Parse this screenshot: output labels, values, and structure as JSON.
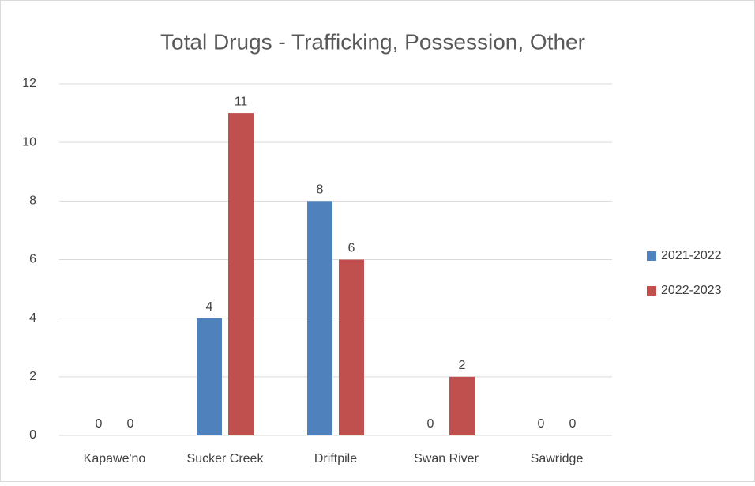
{
  "chart_data": {
    "type": "bar",
    "title": "Total Drugs - Trafficking, Possession, Other",
    "categories": [
      "Kapawe'no",
      "Sucker Creek",
      "Driftpile",
      "Swan River",
      "Sawridge"
    ],
    "series": [
      {
        "name": "2021-2022",
        "color": "#4f81bd",
        "values": [
          0,
          4,
          8,
          0,
          0
        ]
      },
      {
        "name": "2022-2023",
        "color": "#c0504d",
        "values": [
          0,
          11,
          6,
          2,
          0
        ]
      }
    ],
    "ylim": [
      0,
      12
    ],
    "yticks": [
      0,
      2,
      4,
      6,
      8,
      10,
      12
    ],
    "grid": true,
    "legend": "right"
  }
}
